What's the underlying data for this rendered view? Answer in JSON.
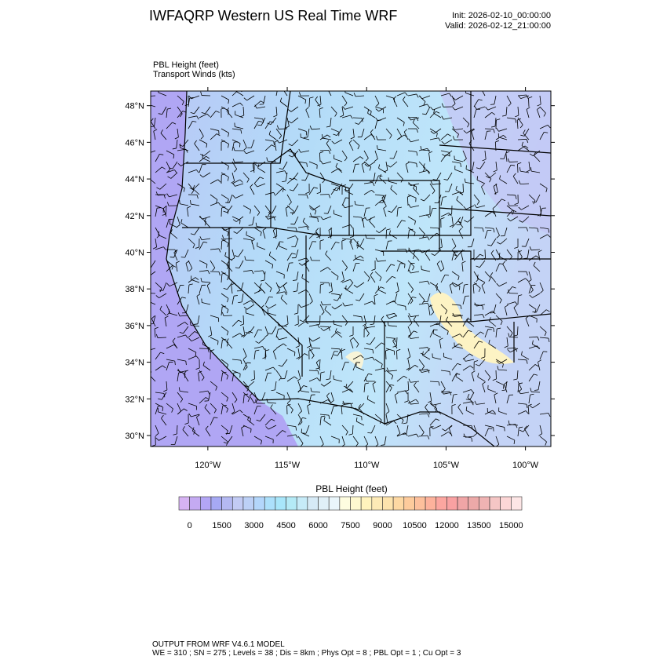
{
  "header": {
    "title": "IWFAQRP Western US Real Time WRF",
    "init": "Init: 2026-02-10_00:00:00",
    "valid": "Valid: 2026-02-12_21:00:00"
  },
  "subtitle": {
    "line1": "PBL Height   (feet)",
    "line2": "Transport Winds   (kts)"
  },
  "footer": {
    "line1": "OUTPUT FROM WRF V4.6.1 MODEL",
    "line2": "WE = 310 ; SN = 275 ; Levels = 38 ; Dis = 8km ; Phys Opt = 8 ; PBL Opt = 1 ; Cu Opt = 3"
  },
  "chart_data": {
    "type": "heatmap",
    "subtype": "filled map contour with wind barbs",
    "title": "IWFAQRP Western US Real Time WRF",
    "variable": "PBL Height (feet)",
    "overlay": "Transport Winds (kts)",
    "lat_ticks": [
      "30°N",
      "32°N",
      "34°N",
      "36°N",
      "38°N",
      "40°N",
      "42°N",
      "44°N",
      "46°N",
      "48°N"
    ],
    "lon_ticks": [
      "120°W",
      "115°W",
      "110°W",
      "105°W",
      "100°W"
    ],
    "lat_range": [
      29.4,
      48.8
    ],
    "lon_range": [
      -123.6,
      -98.4
    ],
    "colorbar": {
      "title": "PBL Height  (feet)",
      "labels": [
        "0",
        "1500",
        "3000",
        "4500",
        "6000",
        "7500",
        "9000",
        "10500",
        "12000",
        "13500",
        "15000"
      ],
      "levels_min": 0,
      "levels_max": 15000,
      "interval": 500,
      "colors": [
        "#d6b3f3",
        "#c4aaf2",
        "#b3a6f5",
        "#a6a9f4",
        "#b4b9f2",
        "#c2cbf4",
        "#bcd0f6",
        "#b3d6fb",
        "#ace0fb",
        "#a8e6fa",
        "#b4eaf6",
        "#c6ebf8",
        "#d6eaf6",
        "#e0f0f8",
        "#eaf6fb",
        "#fefde0",
        "#fef9cf",
        "#fff3bd",
        "#fdeab6",
        "#fde3ad",
        "#fdd8a3",
        "#fdcb9c",
        "#fdc09c",
        "#fdb29c",
        "#fca6a0",
        "#f9a1a2",
        "#f0a5a6",
        "#eca9a8",
        "#efb3b3",
        "#f5c6c5",
        "#fcd6d6",
        "#fde6e6"
      ]
    },
    "field_colors": {
      "ocean": "#b0a6f4",
      "low": "#b4c3f4",
      "mid": "#b2ddf8",
      "high": "#fdf3c4"
    }
  }
}
